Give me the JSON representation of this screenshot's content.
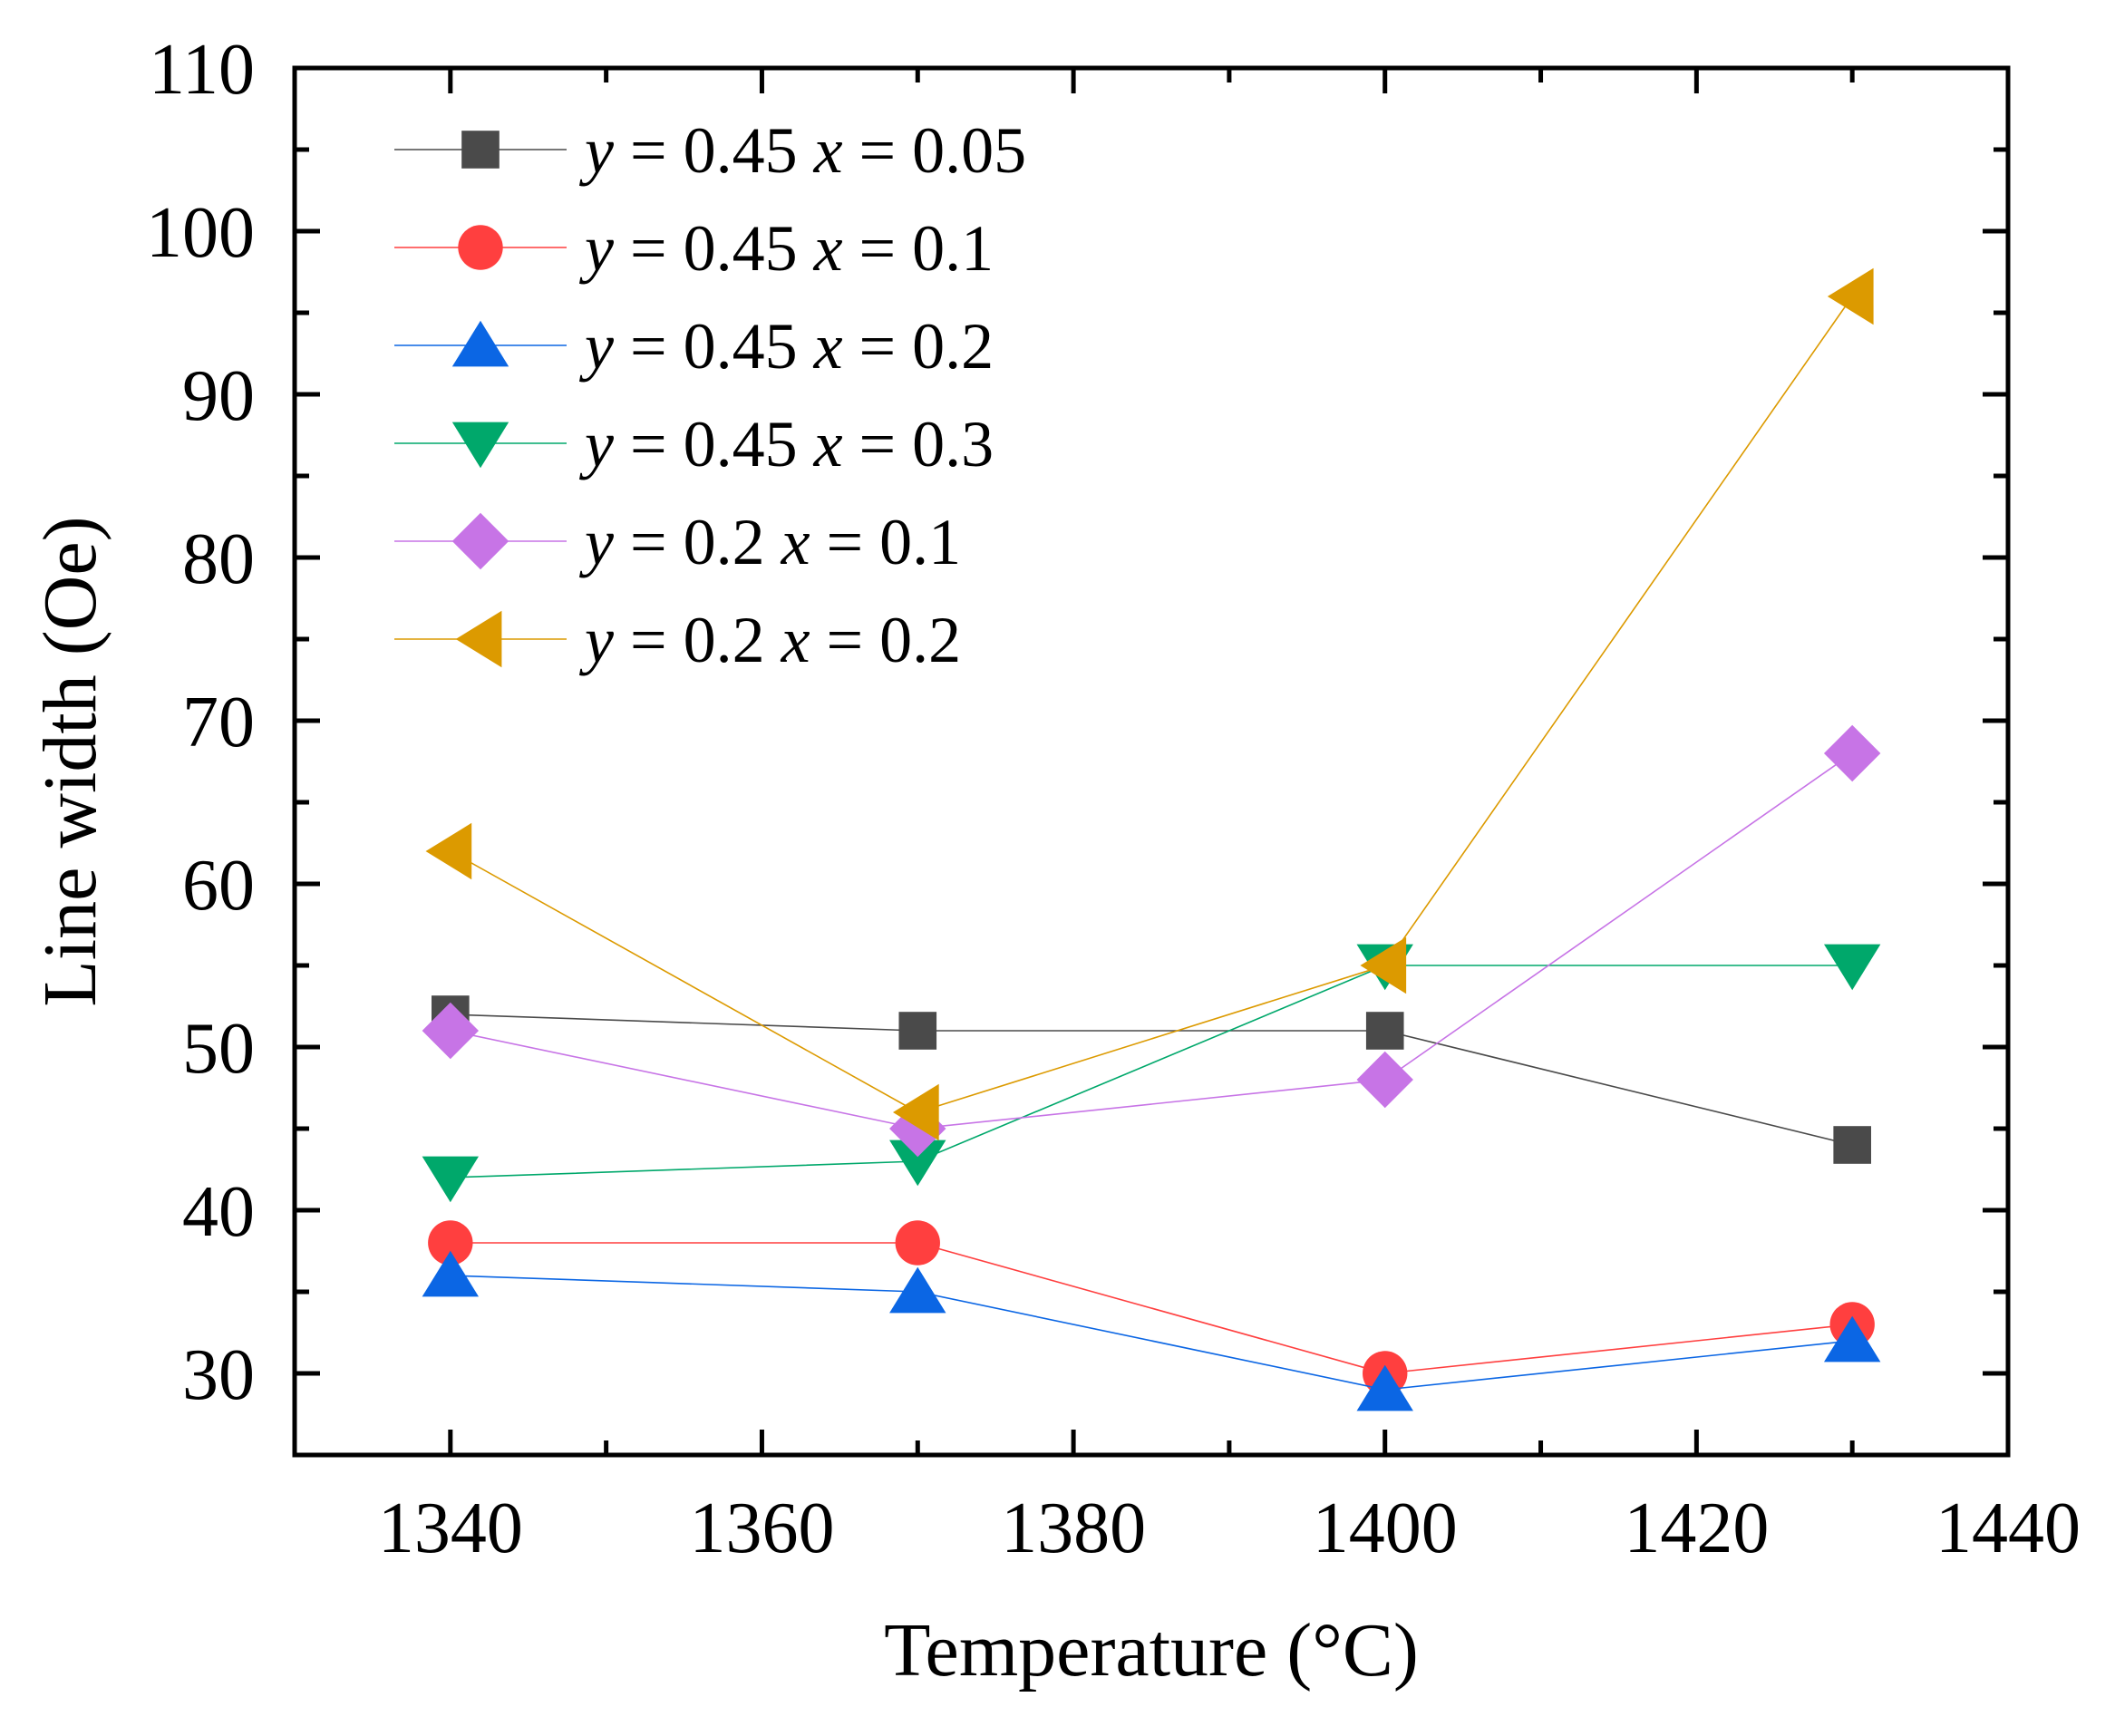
{
  "chart_data": {
    "type": "line",
    "title": "",
    "xlabel": "Temperature (°C)",
    "ylabel": "Line width (Oe)",
    "xlim": [
      1330,
      1440
    ],
    "ylim": [
      25,
      110
    ],
    "x_ticks": [
      1340,
      1360,
      1380,
      1400,
      1420,
      1440
    ],
    "x_tick_labels": [
      "1340",
      "1360",
      "1380",
      "1400",
      "1420",
      "1440"
    ],
    "y_ticks": [
      30,
      40,
      50,
      60,
      70,
      80,
      90,
      100,
      110
    ],
    "y_tick_labels": [
      "30",
      "40",
      "50",
      "60",
      "70",
      "80",
      "90",
      "100",
      "110"
    ],
    "grid": false,
    "legend_position": "top-left",
    "x": [
      1340,
      1370,
      1400,
      1430
    ],
    "series": [
      {
        "name": "y = 0.45 x = 0.05",
        "y_val": "0.45",
        "x_val": "0.05",
        "marker": "square",
        "color": "#4a4a4a",
        "values": [
          52,
          51,
          51,
          44
        ]
      },
      {
        "name": "y = 0.45 x = 0.1",
        "y_val": "0.45",
        "x_val": "0.1",
        "marker": "circle",
        "color": "#ff3f3f",
        "values": [
          38,
          38,
          30,
          33
        ]
      },
      {
        "name": "y = 0.45 x = 0.2",
        "y_val": "0.45",
        "x_val": "0.2",
        "marker": "triangle-up",
        "color": "#0b66e4",
        "values": [
          36,
          35,
          29,
          32
        ]
      },
      {
        "name": "y = 0.45 x = 0.3",
        "y_val": "0.45",
        "x_val": "0.3",
        "marker": "triangle-down",
        "color": "#00a86b",
        "values": [
          42,
          43,
          55,
          55
        ]
      },
      {
        "name": "y = 0.2 x = 0.1",
        "y_val": "0.2",
        "x_val": "0.1",
        "marker": "diamond",
        "color": "#c774e6",
        "values": [
          51,
          45,
          48,
          68
        ]
      },
      {
        "name": "y = 0.2 x = 0.2",
        "y_val": "0.2",
        "x_val": "0.2",
        "marker": "triangle-left",
        "color": "#dc9a00",
        "values": [
          62,
          46,
          55,
          96
        ]
      }
    ]
  }
}
